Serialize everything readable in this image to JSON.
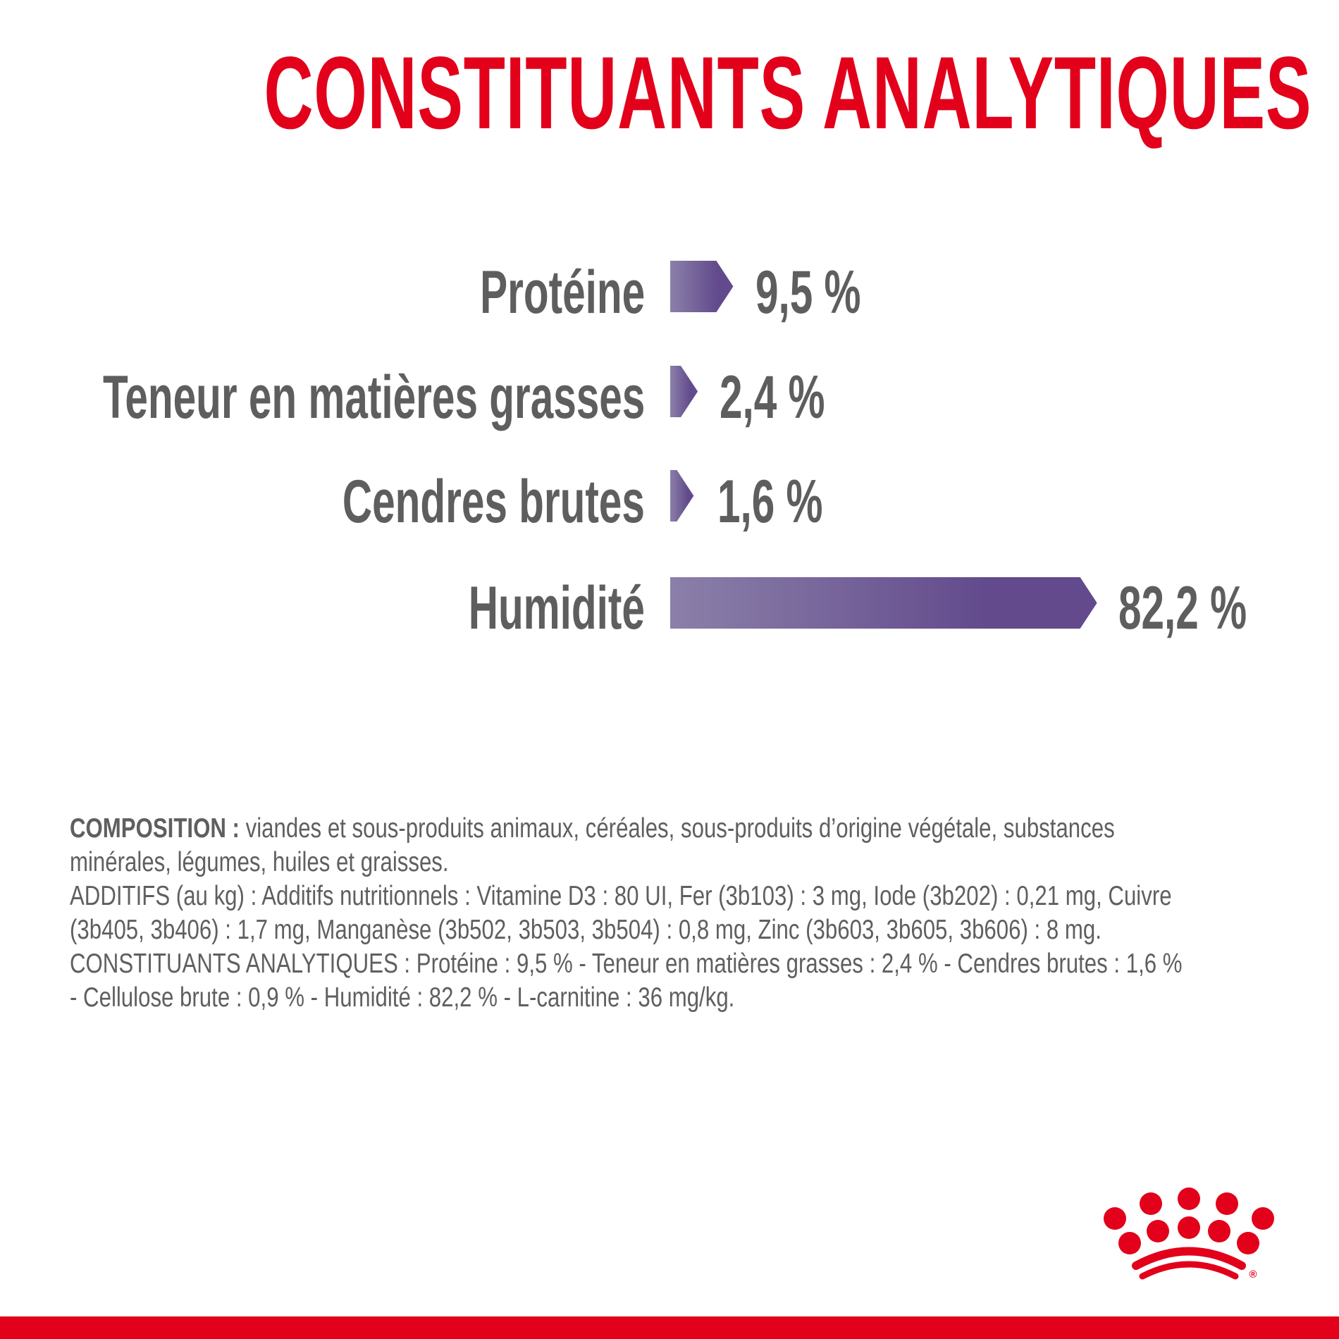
{
  "title": "CONSTITUANTS ANALYTIQUES",
  "colors": {
    "brand_red": "#e2001a",
    "bar_start": "#8b80a9",
    "bar_end": "#624a8c",
    "text_grey": "#5e5e5e"
  },
  "chart_data": {
    "type": "bar",
    "orientation": "horizontal",
    "categories": [
      "Protéine",
      "Teneur en matières grasses",
      "Cendres brutes",
      "Humidité"
    ],
    "values": [
      9.5,
      2.4,
      1.6,
      82.2
    ],
    "data_labels": [
      "9,5 %",
      "2,4 %",
      "1,6 %",
      "82,2 %"
    ],
    "unit": "%",
    "grid": false
  },
  "composition": {
    "heading": "COMPOSITION :",
    "lines": [
      " viandes et sous-produits animaux, céréales, sous-produits d’origine végétale, substances",
      "minérales, légumes, huiles et graisses.",
      "ADDITIFS (au kg) : Additifs nutritionnels : Vitamine D3 : 80 UI, Fer (3b103) : 3 mg, Iode (3b202) : 0,21 mg, Cuivre",
      "(3b405, 3b406) : 1,7 mg, Manganèse (3b502, 3b503, 3b504) : 0,8 mg, Zinc (3b603, 3b605, 3b606) : 8 mg.",
      "CONSTITUANTS ANALYTIQUES : Protéine : 9,5 % - Teneur en matières grasses : 2,4 % - Cendres brutes : 1,6 %",
      "- Cellulose brute : 0,9 % - Humidité : 82,2 % - L-carnitine : 36 mg/kg."
    ]
  },
  "logo": {
    "icon": "crown-logo-icon",
    "mark": "®"
  }
}
